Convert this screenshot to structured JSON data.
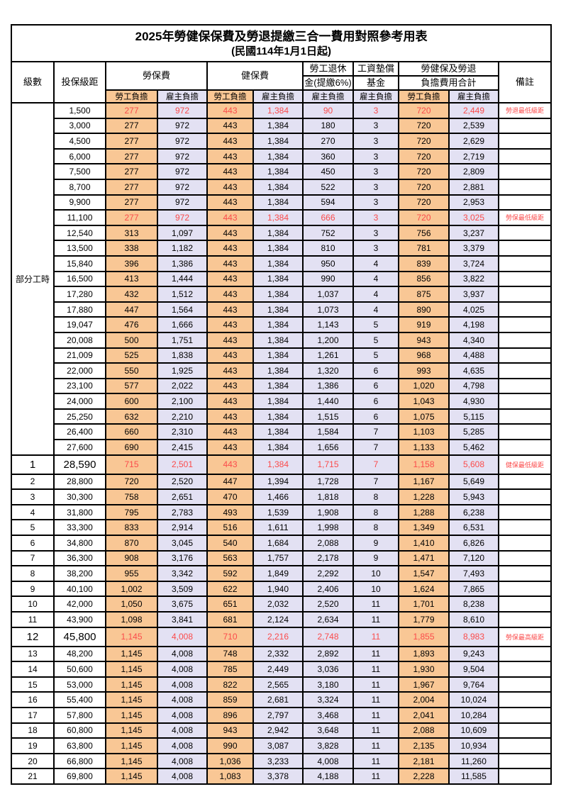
{
  "title": "2025年勞健保保費及勞退提繳三合一費用對照參考用表",
  "subtitle": "(民國114年1月1日起)",
  "colors": {
    "employee_bg": "#F9C795",
    "employer_bg": "#E3E1F3",
    "highlight_red": "#FB4B4B",
    "border": "#000000"
  },
  "header": {
    "grade": "級數",
    "bracket": "投保級距",
    "labor_insurance": "勞保費",
    "health_insurance": "健保費",
    "pension_line1": "勞工退休",
    "pension_line2": "金(提繳6%)",
    "wage_fund_line1": "工資墊償",
    "wage_fund_line2": "基金",
    "total_line1": "勞健保及勞退",
    "total_line2": "負擔費用合計",
    "remark": "備註",
    "employee_share": "勞工負擔",
    "employer_share": "雇主負擔"
  },
  "part_time_label": "部分工時",
  "part_time_rowspan": 23,
  "rows": [
    {
      "grade": "",
      "bracket": "1,500",
      "values": [
        "277",
        "972",
        "443",
        "1,384",
        "90",
        "3",
        "720",
        "2,449"
      ],
      "remark": "勞退最低級距",
      "red": true
    },
    {
      "grade": "",
      "bracket": "3,000",
      "values": [
        "277",
        "972",
        "443",
        "1,384",
        "180",
        "3",
        "720",
        "2,539"
      ],
      "remark": ""
    },
    {
      "grade": "",
      "bracket": "4,500",
      "values": [
        "277",
        "972",
        "443",
        "1,384",
        "270",
        "3",
        "720",
        "2,629"
      ],
      "remark": ""
    },
    {
      "grade": "",
      "bracket": "6,000",
      "values": [
        "277",
        "972",
        "443",
        "1,384",
        "360",
        "3",
        "720",
        "2,719"
      ],
      "remark": ""
    },
    {
      "grade": "",
      "bracket": "7,500",
      "values": [
        "277",
        "972",
        "443",
        "1,384",
        "450",
        "3",
        "720",
        "2,809"
      ],
      "remark": ""
    },
    {
      "grade": "",
      "bracket": "8,700",
      "values": [
        "277",
        "972",
        "443",
        "1,384",
        "522",
        "3",
        "720",
        "2,881"
      ],
      "remark": ""
    },
    {
      "grade": "",
      "bracket": "9,900",
      "values": [
        "277",
        "972",
        "443",
        "1,384",
        "594",
        "3",
        "720",
        "2,953"
      ],
      "remark": ""
    },
    {
      "grade": "",
      "bracket": "11,100",
      "values": [
        "277",
        "972",
        "443",
        "1,384",
        "666",
        "3",
        "720",
        "3,025"
      ],
      "remark": "勞保最低級距",
      "red": true
    },
    {
      "grade": "",
      "bracket": "12,540",
      "values": [
        "313",
        "1,097",
        "443",
        "1,384",
        "752",
        "3",
        "756",
        "3,237"
      ],
      "remark": ""
    },
    {
      "grade": "",
      "bracket": "13,500",
      "values": [
        "338",
        "1,182",
        "443",
        "1,384",
        "810",
        "3",
        "781",
        "3,379"
      ],
      "remark": ""
    },
    {
      "grade": "",
      "bracket": "15,840",
      "values": [
        "396",
        "1,386",
        "443",
        "1,384",
        "950",
        "4",
        "839",
        "3,724"
      ],
      "remark": ""
    },
    {
      "grade": "",
      "bracket": "16,500",
      "values": [
        "413",
        "1,444",
        "443",
        "1,384",
        "990",
        "4",
        "856",
        "3,822"
      ],
      "remark": ""
    },
    {
      "grade": "",
      "bracket": "17,280",
      "values": [
        "432",
        "1,512",
        "443",
        "1,384",
        "1,037",
        "4",
        "875",
        "3,937"
      ],
      "remark": ""
    },
    {
      "grade": "",
      "bracket": "17,880",
      "values": [
        "447",
        "1,564",
        "443",
        "1,384",
        "1,073",
        "4",
        "890",
        "4,025"
      ],
      "remark": ""
    },
    {
      "grade": "",
      "bracket": "19,047",
      "values": [
        "476",
        "1,666",
        "443",
        "1,384",
        "1,143",
        "5",
        "919",
        "4,198"
      ],
      "remark": ""
    },
    {
      "grade": "",
      "bracket": "20,008",
      "values": [
        "500",
        "1,751",
        "443",
        "1,384",
        "1,200",
        "5",
        "943",
        "4,340"
      ],
      "remark": ""
    },
    {
      "grade": "",
      "bracket": "21,009",
      "values": [
        "525",
        "1,838",
        "443",
        "1,384",
        "1,261",
        "5",
        "968",
        "4,488"
      ],
      "remark": ""
    },
    {
      "grade": "",
      "bracket": "22,000",
      "values": [
        "550",
        "1,925",
        "443",
        "1,384",
        "1,320",
        "6",
        "993",
        "4,635"
      ],
      "remark": ""
    },
    {
      "grade": "",
      "bracket": "23,100",
      "values": [
        "577",
        "2,022",
        "443",
        "1,384",
        "1,386",
        "6",
        "1,020",
        "4,798"
      ],
      "remark": ""
    },
    {
      "grade": "",
      "bracket": "24,000",
      "values": [
        "600",
        "2,100",
        "443",
        "1,384",
        "1,440",
        "6",
        "1,043",
        "4,930"
      ],
      "remark": ""
    },
    {
      "grade": "",
      "bracket": "25,250",
      "values": [
        "632",
        "2,210",
        "443",
        "1,384",
        "1,515",
        "6",
        "1,075",
        "5,115"
      ],
      "remark": ""
    },
    {
      "grade": "",
      "bracket": "26,400",
      "values": [
        "660",
        "2,310",
        "443",
        "1,384",
        "1,584",
        "7",
        "1,103",
        "5,285"
      ],
      "remark": ""
    },
    {
      "grade": "",
      "bracket": "27,600",
      "values": [
        "690",
        "2,415",
        "443",
        "1,384",
        "1,656",
        "7",
        "1,133",
        "5,462"
      ],
      "remark": ""
    },
    {
      "grade": "1",
      "bracket": "28,590",
      "values": [
        "715",
        "2,501",
        "443",
        "1,384",
        "1,715",
        "7",
        "1,158",
        "5,608"
      ],
      "remark": "健保最低級距",
      "red": true,
      "big": true
    },
    {
      "grade": "2",
      "bracket": "28,800",
      "values": [
        "720",
        "2,520",
        "447",
        "1,394",
        "1,728",
        "7",
        "1,167",
        "5,649"
      ],
      "remark": ""
    },
    {
      "grade": "3",
      "bracket": "30,300",
      "values": [
        "758",
        "2,651",
        "470",
        "1,466",
        "1,818",
        "8",
        "1,228",
        "5,943"
      ],
      "remark": ""
    },
    {
      "grade": "4",
      "bracket": "31,800",
      "values": [
        "795",
        "2,783",
        "493",
        "1,539",
        "1,908",
        "8",
        "1,288",
        "6,238"
      ],
      "remark": ""
    },
    {
      "grade": "5",
      "bracket": "33,300",
      "values": [
        "833",
        "2,914",
        "516",
        "1,611",
        "1,998",
        "8",
        "1,349",
        "6,531"
      ],
      "remark": ""
    },
    {
      "grade": "6",
      "bracket": "34,800",
      "values": [
        "870",
        "3,045",
        "540",
        "1,684",
        "2,088",
        "9",
        "1,410",
        "6,826"
      ],
      "remark": ""
    },
    {
      "grade": "7",
      "bracket": "36,300",
      "values": [
        "908",
        "3,176",
        "563",
        "1,757",
        "2,178",
        "9",
        "1,471",
        "7,120"
      ],
      "remark": ""
    },
    {
      "grade": "8",
      "bracket": "38,200",
      "values": [
        "955",
        "3,342",
        "592",
        "1,849",
        "2,292",
        "10",
        "1,547",
        "7,493"
      ],
      "remark": ""
    },
    {
      "grade": "9",
      "bracket": "40,100",
      "values": [
        "1,002",
        "3,509",
        "622",
        "1,940",
        "2,406",
        "10",
        "1,624",
        "7,865"
      ],
      "remark": ""
    },
    {
      "grade": "10",
      "bracket": "42,000",
      "values": [
        "1,050",
        "3,675",
        "651",
        "2,032",
        "2,520",
        "11",
        "1,701",
        "8,238"
      ],
      "remark": ""
    },
    {
      "grade": "11",
      "bracket": "43,900",
      "values": [
        "1,098",
        "3,841",
        "681",
        "2,124",
        "2,634",
        "11",
        "1,779",
        "8,610"
      ],
      "remark": ""
    },
    {
      "grade": "12",
      "bracket": "45,800",
      "values": [
        "1,145",
        "4,008",
        "710",
        "2,216",
        "2,748",
        "11",
        "1,855",
        "8,983"
      ],
      "remark": "勞保最高級距",
      "red": true,
      "big": true
    },
    {
      "grade": "13",
      "bracket": "48,200",
      "values": [
        "1,145",
        "4,008",
        "748",
        "2,332",
        "2,892",
        "11",
        "1,893",
        "9,243"
      ],
      "remark": ""
    },
    {
      "grade": "14",
      "bracket": "50,600",
      "values": [
        "1,145",
        "4,008",
        "785",
        "2,449",
        "3,036",
        "11",
        "1,930",
        "9,504"
      ],
      "remark": ""
    },
    {
      "grade": "15",
      "bracket": "53,000",
      "values": [
        "1,145",
        "4,008",
        "822",
        "2,565",
        "3,180",
        "11",
        "1,967",
        "9,764"
      ],
      "remark": ""
    },
    {
      "grade": "16",
      "bracket": "55,400",
      "values": [
        "1,145",
        "4,008",
        "859",
        "2,681",
        "3,324",
        "11",
        "2,004",
        "10,024"
      ],
      "remark": ""
    },
    {
      "grade": "17",
      "bracket": "57,800",
      "values": [
        "1,145",
        "4,008",
        "896",
        "2,797",
        "3,468",
        "11",
        "2,041",
        "10,284"
      ],
      "remark": ""
    },
    {
      "grade": "18",
      "bracket": "60,800",
      "values": [
        "1,145",
        "4,008",
        "943",
        "2,942",
        "3,648",
        "11",
        "2,088",
        "10,609"
      ],
      "remark": ""
    },
    {
      "grade": "19",
      "bracket": "63,800",
      "values": [
        "1,145",
        "4,008",
        "990",
        "3,087",
        "3,828",
        "11",
        "2,135",
        "10,934"
      ],
      "remark": ""
    },
    {
      "grade": "20",
      "bracket": "66,800",
      "values": [
        "1,145",
        "4,008",
        "1,036",
        "3,233",
        "4,008",
        "11",
        "2,181",
        "11,260"
      ],
      "remark": ""
    },
    {
      "grade": "21",
      "bracket": "69,800",
      "values": [
        "1,145",
        "4,008",
        "1,083",
        "3,378",
        "4,188",
        "11",
        "2,228",
        "11,585"
      ],
      "remark": ""
    }
  ]
}
